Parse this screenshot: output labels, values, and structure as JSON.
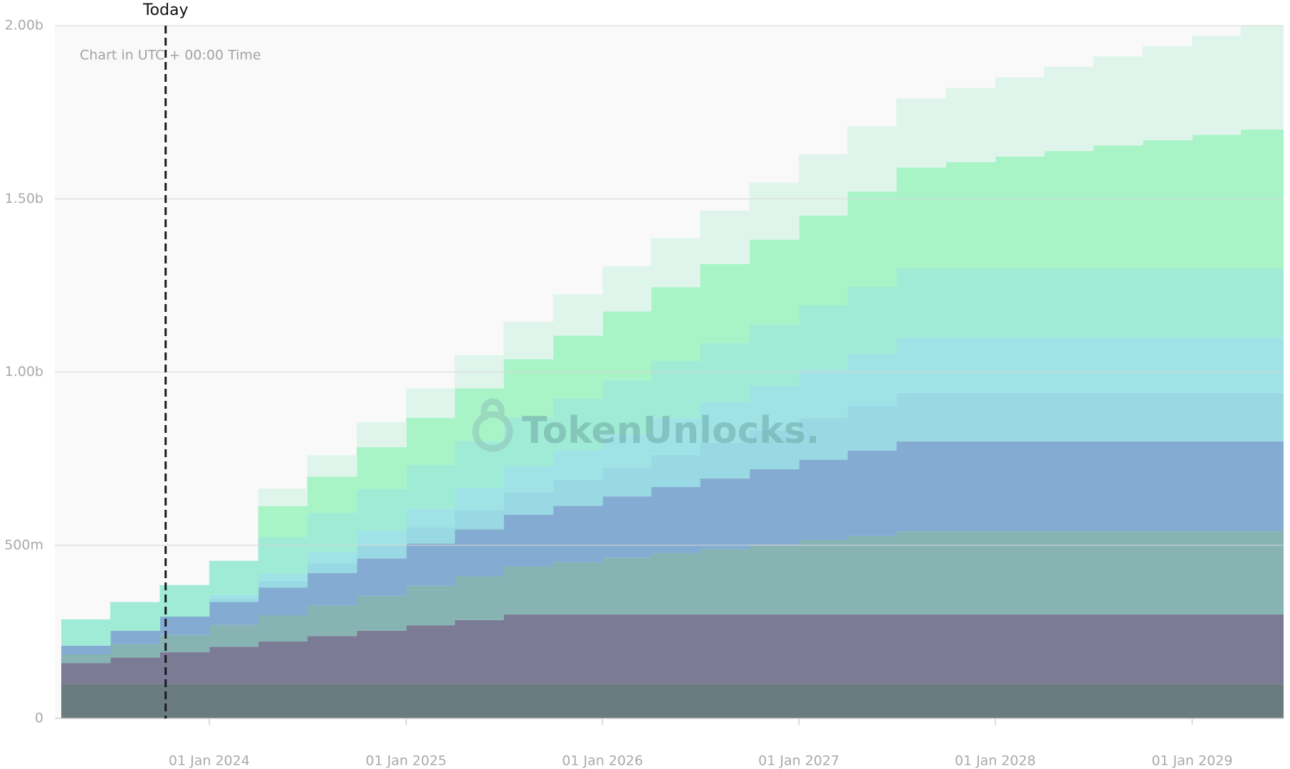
{
  "chart_data": {
    "type": "stacked-step-area",
    "annotation": "Chart in UTC + 00:00 Time",
    "watermark": "TokenUnlocks.",
    "today": {
      "label": "Today",
      "x": "2023-10-12"
    },
    "x": [
      "2023-04-01",
      "2023-07-01",
      "2023-10-01",
      "2024-01-01",
      "2024-04-01",
      "2024-07-01",
      "2024-10-01",
      "2025-01-01",
      "2025-04-01",
      "2025-07-01",
      "2025-10-01",
      "2026-01-01",
      "2026-04-01",
      "2026-07-01",
      "2026-10-01",
      "2027-01-01",
      "2027-04-01",
      "2027-07-01",
      "2027-10-01",
      "2028-01-01",
      "2028-04-01",
      "2028-07-01",
      "2028-10-01",
      "2029-01-01",
      "2029-04-01"
    ],
    "xlim": [
      "2023-03-20",
      "2029-06-20"
    ],
    "xticks": [
      {
        "value": "2024-01-01",
        "label": "01 Jan 2024"
      },
      {
        "value": "2025-01-01",
        "label": "01 Jan 2025"
      },
      {
        "value": "2026-01-01",
        "label": "01 Jan 2026"
      },
      {
        "value": "2027-01-01",
        "label": "01 Jan 2027"
      },
      {
        "value": "2028-01-01",
        "label": "01 Jan 2028"
      },
      {
        "value": "2029-01-01",
        "label": "01 Jan 2029"
      }
    ],
    "ylim": [
      0,
      2000000000
    ],
    "yticks": [
      0,
      {
        "value": 500000000,
        "label": "500m"
      },
      {
        "value": 1000000000,
        "label": "1.00b"
      },
      {
        "value": 1500000000,
        "label": "1.50b"
      },
      {
        "value": 2000000000,
        "label": "2.00b"
      }
    ],
    "grid": true,
    "series": [
      {
        "color": "#6b7c80",
        "values": [
          100000000,
          100000000,
          100000000,
          100000000,
          100000000,
          100000000,
          100000000,
          100000000,
          100000000,
          100000000,
          100000000,
          100000000,
          100000000,
          100000000,
          100000000,
          100000000,
          100000000,
          100000000,
          100000000,
          100000000,
          100000000,
          100000000,
          100000000,
          100000000,
          100000000
        ]
      },
      {
        "color": "#7b7b96",
        "values": [
          60000000,
          76000000,
          91000000,
          107000000,
          122000000,
          138000000,
          153000000,
          169000000,
          184000000,
          200000000,
          200000000,
          200000000,
          200000000,
          200000000,
          200000000,
          200000000,
          200000000,
          200000000,
          200000000,
          200000000,
          200000000,
          200000000,
          200000000,
          200000000,
          200000000
        ]
      },
      {
        "color": "#87b3b3",
        "values": [
          25000000,
          38000000,
          50000000,
          63000000,
          76000000,
          88000000,
          101000000,
          114000000,
          126000000,
          139000000,
          151000000,
          164000000,
          177000000,
          189000000,
          202000000,
          215000000,
          227000000,
          240000000,
          240000000,
          240000000,
          240000000,
          240000000,
          240000000,
          240000000,
          240000000
        ]
      },
      {
        "color": "#84acd2",
        "values": [
          25000000,
          39000000,
          53000000,
          66000000,
          80000000,
          94000000,
          108000000,
          122000000,
          136000000,
          149000000,
          163000000,
          177000000,
          191000000,
          204000000,
          218000000,
          232000000,
          246000000,
          260000000,
          260000000,
          260000000,
          260000000,
          260000000,
          260000000,
          260000000,
          260000000
        ]
      },
      {
        "color": "#98d9e3",
        "values": [
          0,
          0,
          0,
          10000000,
          19000000,
          28000000,
          37000000,
          47000000,
          56000000,
          65000000,
          75000000,
          84000000,
          93000000,
          103000000,
          112000000,
          121000000,
          131000000,
          140000000,
          140000000,
          140000000,
          140000000,
          140000000,
          140000000,
          140000000,
          140000000
        ]
      },
      {
        "color": "#9fe3e7",
        "values": [
          0,
          0,
          0,
          11000000,
          21000000,
          32000000,
          43000000,
          53000000,
          64000000,
          75000000,
          85000000,
          96000000,
          107000000,
          117000000,
          128000000,
          139000000,
          149000000,
          160000000,
          160000000,
          160000000,
          160000000,
          160000000,
          160000000,
          160000000,
          160000000
        ]
      },
      {
        "color": "#a0ebd5",
        "values": [
          76000000,
          83000000,
          91000000,
          98000000,
          105000000,
          113000000,
          120000000,
          127000000,
          135000000,
          142000000,
          149000000,
          156000000,
          164000000,
          171000000,
          178000000,
          186000000,
          193000000,
          200000000,
          200000000,
          200000000,
          200000000,
          200000000,
          200000000,
          200000000,
          200000000
        ]
      },
      {
        "color": "#a8f4c7",
        "values": [
          0,
          0,
          0,
          0,
          90000000,
          105000000,
          121000000,
          136000000,
          152000000,
          167000000,
          182000000,
          198000000,
          213000000,
          228000000,
          244000000,
          259000000,
          275000000,
          290000000,
          306000000,
          322000000,
          338000000,
          354000000,
          369000000,
          385000000,
          400000000
        ]
      },
      {
        "color": "#dff5ec",
        "values": [
          0,
          0,
          0,
          0,
          50000000,
          62000000,
          73000000,
          85000000,
          96000000,
          108000000,
          119000000,
          131000000,
          142000000,
          154000000,
          165000000,
          177000000,
          188000000,
          200000000,
          214000000,
          229000000,
          243000000,
          257000000,
          271000000,
          286000000,
          300000000
        ]
      }
    ]
  }
}
